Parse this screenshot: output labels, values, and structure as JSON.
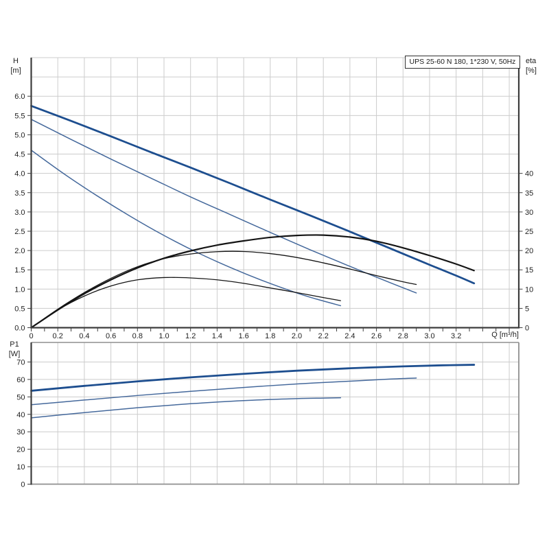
{
  "title_box": {
    "text": "UPS 25-60 N 180, 1*230 V, 50Hz"
  },
  "labels": {
    "h_axis": "H",
    "h_unit": "[m]",
    "eta_axis": "eta",
    "eta_unit": "[%]",
    "p1_axis": "P1",
    "p1_unit": "[W]",
    "q_axis": "Q [m³/h]"
  },
  "colors": {
    "grid": "#cccccc",
    "axis_dark": "#3d3d3d",
    "frame_gray": "#8f8f8f",
    "curve_thick_blue": "#1d4e8f",
    "curve_thin_blue": "#44689b",
    "curve_black": "#141414",
    "text": "#222222"
  },
  "chart_data": [
    {
      "type": "line",
      "title": "UPS 25-60 N 180, 1*230 V, 50Hz",
      "xlabel": "Q [m³/h]",
      "ylabel_left": "H [m]",
      "ylabel_right": "eta [%]",
      "xlim": [
        0,
        3.672
      ],
      "ylim_left": [
        0,
        7
      ],
      "ylim_right": [
        0,
        70
      ],
      "grid": true,
      "x_grid_step": 0.2,
      "x_grid_max": 3.6,
      "x_minor_tick_step": 0.1,
      "x_tick_values": [
        0,
        0.2,
        0.4,
        0.6,
        0.8,
        1.0,
        1.2,
        1.4,
        1.6,
        1.8,
        2.0,
        2.2,
        2.4,
        2.6,
        2.8,
        3.0,
        3.2
      ],
      "x_tick_labels": [
        "0",
        "0.2",
        "0.4",
        "0.6",
        "0.8",
        "1.0",
        "1.2",
        "1.4",
        "1.6",
        "1.8",
        "2.0",
        "2.2",
        "2.4",
        "2.6",
        "2.8",
        "3.0",
        "3.2"
      ],
      "left_tick_values": [
        0,
        0.5,
        1,
        1.5,
        2,
        2.5,
        3,
        3.5,
        4,
        4.5,
        5,
        5.5,
        6
      ],
      "left_tick_labels": [
        "0.0",
        "0.5",
        "1.0",
        "1.5",
        "2.0",
        "2.5",
        "3.0",
        "3.5",
        "4.0",
        "4.5",
        "5.0",
        "5.5",
        "6.0"
      ],
      "right_tick_values": [
        0,
        5,
        10,
        15,
        20,
        25,
        30,
        35,
        40
      ],
      "right_tick_labels": [
        "0",
        "5",
        "10",
        "15",
        "20",
        "25",
        "30",
        "35",
        "40"
      ],
      "series": [
        {
          "name": "head-speed-3",
          "axis": "left",
          "role": "thick-blue",
          "width": 2.8,
          "points": [
            [
              0,
              5.75
            ],
            [
              0.3,
              5.36
            ],
            [
              0.6,
              4.96
            ],
            [
              0.9,
              4.55
            ],
            [
              1.2,
              4.15
            ],
            [
              1.5,
              3.74
            ],
            [
              1.8,
              3.32
            ],
            [
              2.1,
              2.91
            ],
            [
              2.4,
              2.49
            ],
            [
              2.7,
              2.06
            ],
            [
              3.0,
              1.63
            ],
            [
              3.2,
              1.35
            ],
            [
              3.335,
              1.15
            ]
          ]
        },
        {
          "name": "head-speed-2",
          "axis": "left",
          "role": "thin-blue",
          "width": 1.5,
          "points": [
            [
              0,
              5.4
            ],
            [
              0.3,
              4.88
            ],
            [
              0.6,
              4.37
            ],
            [
              0.9,
              3.88
            ],
            [
              1.2,
              3.39
            ],
            [
              1.5,
              2.93
            ],
            [
              1.8,
              2.47
            ],
            [
              2.1,
              2.02
            ],
            [
              2.4,
              1.59
            ],
            [
              2.7,
              1.17
            ],
            [
              2.9,
              0.9
            ]
          ]
        },
        {
          "name": "head-speed-1",
          "axis": "left",
          "role": "thin-blue",
          "width": 1.5,
          "points": [
            [
              0,
              4.6
            ],
            [
              0.25,
              3.98
            ],
            [
              0.5,
              3.41
            ],
            [
              0.75,
              2.88
            ],
            [
              1.0,
              2.39
            ],
            [
              1.25,
              1.95
            ],
            [
              1.5,
              1.56
            ],
            [
              1.75,
              1.21
            ],
            [
              2.0,
              0.9
            ],
            [
              2.15,
              0.74
            ],
            [
              2.33,
              0.57
            ]
          ]
        },
        {
          "name": "eta-speed-3",
          "axis": "right",
          "role": "thick-black",
          "width": 2.2,
          "points": [
            [
              0,
              0
            ],
            [
              0.2,
              4.6
            ],
            [
              0.4,
              8.8
            ],
            [
              0.6,
              12.4
            ],
            [
              0.8,
              15.5
            ],
            [
              1.0,
              18.0
            ],
            [
              1.2,
              19.9
            ],
            [
              1.4,
              21.4
            ],
            [
              1.6,
              22.5
            ],
            [
              1.8,
              23.4
            ],
            [
              2.0,
              23.9
            ],
            [
              2.2,
              24.0
            ],
            [
              2.4,
              23.5
            ],
            [
              2.6,
              22.4
            ],
            [
              2.8,
              20.7
            ],
            [
              3.0,
              18.7
            ],
            [
              3.2,
              16.5
            ],
            [
              3.335,
              14.8
            ]
          ]
        },
        {
          "name": "eta-speed-2",
          "axis": "right",
          "role": "thin-black",
          "width": 1.3,
          "points": [
            [
              0,
              0
            ],
            [
              0.2,
              4.8
            ],
            [
              0.4,
              9.1
            ],
            [
              0.6,
              12.8
            ],
            [
              0.8,
              15.8
            ],
            [
              1.0,
              17.9
            ],
            [
              1.2,
              19.1
            ],
            [
              1.4,
              19.7
            ],
            [
              1.6,
              19.75
            ],
            [
              1.8,
              19.2
            ],
            [
              2.0,
              18.2
            ],
            [
              2.2,
              16.8
            ],
            [
              2.4,
              15.2
            ],
            [
              2.6,
              13.5
            ],
            [
              2.8,
              11.9
            ],
            [
              2.9,
              11.2
            ]
          ]
        },
        {
          "name": "eta-speed-1",
          "axis": "right",
          "role": "thin-black",
          "width": 1.3,
          "points": [
            [
              0,
              0
            ],
            [
              0.2,
              4.6
            ],
            [
              0.4,
              8.2
            ],
            [
              0.6,
              10.8
            ],
            [
              0.8,
              12.4
            ],
            [
              1.0,
              13.0
            ],
            [
              1.2,
              12.9
            ],
            [
              1.4,
              12.4
            ],
            [
              1.6,
              11.5
            ],
            [
              1.8,
              10.3
            ],
            [
              2.0,
              9.1
            ],
            [
              2.2,
              7.8
            ],
            [
              2.33,
              7.0
            ]
          ]
        }
      ]
    },
    {
      "type": "line",
      "title": "",
      "xlabel": "",
      "ylabel": "P1 [W]",
      "xlim": [
        0,
        3.672
      ],
      "ylim": [
        0,
        81.2
      ],
      "grid": true,
      "x_grid_step": 0.2,
      "x_grid_max": 3.6,
      "y_tick_values": [
        0,
        10,
        20,
        30,
        40,
        50,
        60,
        70
      ],
      "y_tick_labels": [
        "0",
        "10",
        "20",
        "30",
        "40",
        "50",
        "60",
        "70"
      ],
      "series": [
        {
          "name": "power-speed-3",
          "role": "thick-blue",
          "width": 2.8,
          "points": [
            [
              0,
              53.5
            ],
            [
              0.4,
              56.3
            ],
            [
              0.8,
              58.9
            ],
            [
              1.2,
              61.2
            ],
            [
              1.6,
              63.2
            ],
            [
              2.0,
              65.0
            ],
            [
              2.4,
              66.4
            ],
            [
              2.8,
              67.5
            ],
            [
              3.1,
              68.1
            ],
            [
              3.335,
              68.4
            ]
          ]
        },
        {
          "name": "power-speed-2",
          "role": "thin-blue",
          "width": 1.5,
          "points": [
            [
              0,
              45.5
            ],
            [
              0.4,
              48.2
            ],
            [
              0.8,
              50.8
            ],
            [
              1.2,
              53.2
            ],
            [
              1.6,
              55.4
            ],
            [
              2.0,
              57.4
            ],
            [
              2.4,
              59.0
            ],
            [
              2.7,
              60.2
            ],
            [
              2.9,
              60.8
            ]
          ]
        },
        {
          "name": "power-speed-1",
          "role": "thin-blue",
          "width": 1.5,
          "points": [
            [
              0,
              38.0
            ],
            [
              0.4,
              41.0
            ],
            [
              0.8,
              43.8
            ],
            [
              1.2,
              46.1
            ],
            [
              1.6,
              47.9
            ],
            [
              2.0,
              49.0
            ],
            [
              2.2,
              49.3
            ],
            [
              2.33,
              49.5
            ]
          ]
        }
      ]
    }
  ]
}
